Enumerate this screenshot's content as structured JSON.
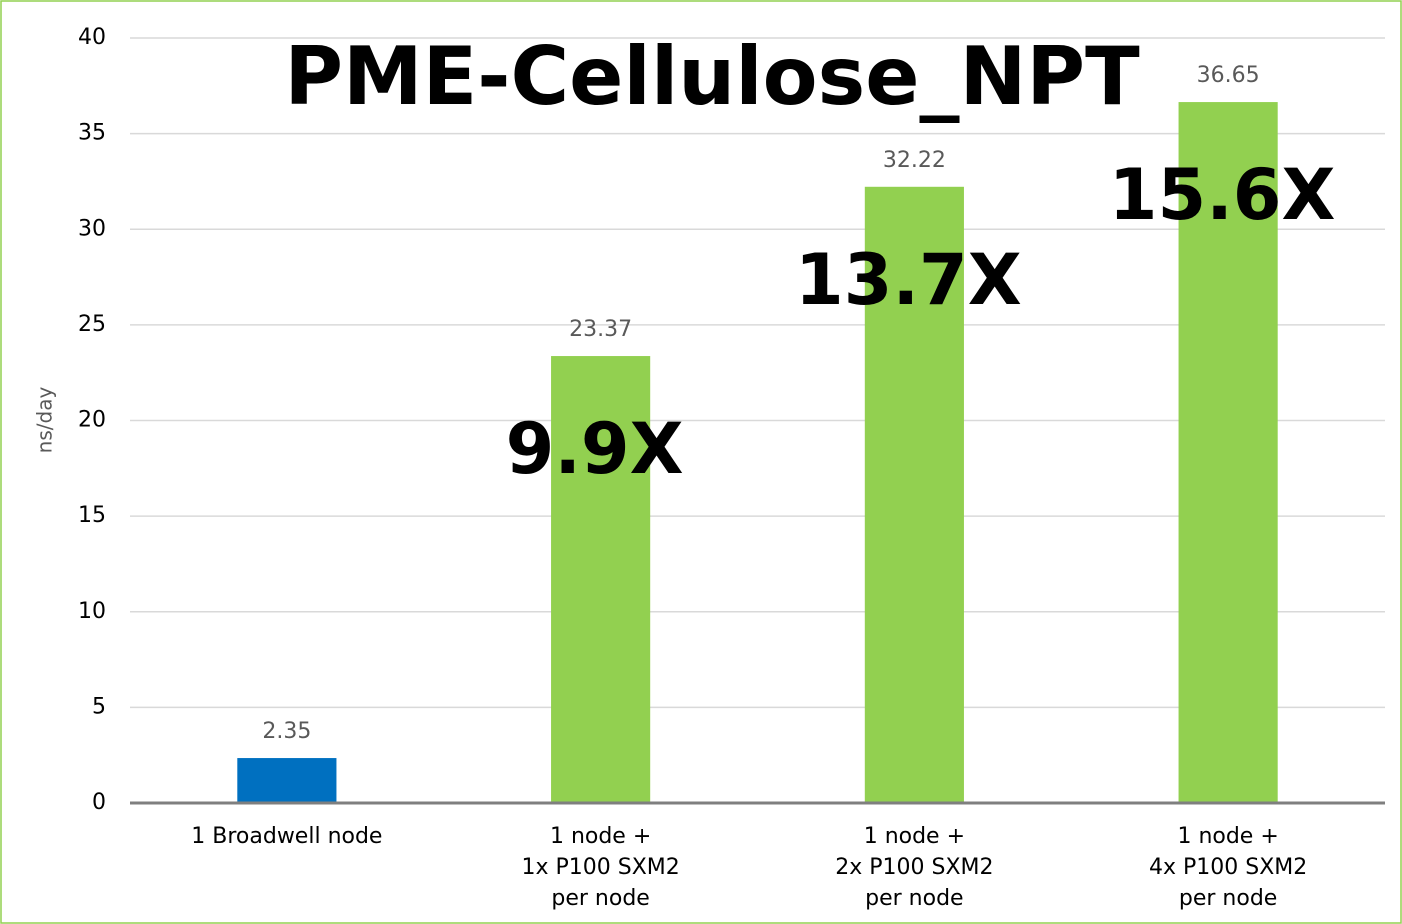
{
  "chart_data": {
    "type": "bar",
    "title": "PME-Cellulose_NPT",
    "y_label": "ns/day",
    "categories": [
      [
        "1 Broadwell node"
      ],
      [
        "1 node +",
        "1x P100 SXM2",
        "per node"
      ],
      [
        "1 node +",
        "2x P100 SXM2",
        "per node"
      ],
      [
        "1 node +",
        "4x P100 SXM2",
        "per node"
      ]
    ],
    "values": [
      2.35,
      23.37,
      32.22,
      36.65
    ],
    "colors": [
      "#0070c0",
      "#92d050",
      "#92d050",
      "#92d050"
    ],
    "speedups": [
      null,
      "9.9X",
      "13.7X",
      "15.6X"
    ],
    "ylim": [
      0,
      40
    ],
    "yticks": [
      0,
      5,
      10,
      15,
      20,
      25,
      30,
      35,
      40
    ],
    "grid": true
  }
}
